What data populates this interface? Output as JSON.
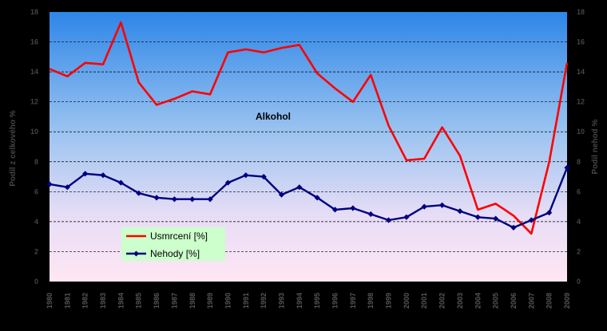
{
  "chart_data": {
    "type": "line",
    "x": [
      "1980",
      "1981",
      "1982",
      "1983",
      "1984",
      "1985",
      "1986",
      "1987",
      "1988",
      "1989",
      "1990",
      "1991",
      "1992",
      "1993",
      "1994",
      "1995",
      "1996",
      "1997",
      "1998",
      "1999",
      "2000",
      "2001",
      "2002",
      "2003",
      "2004",
      "2005",
      "2006",
      "2007",
      "2008",
      "2009"
    ],
    "series": [
      {
        "name": "Usmrcení [%]",
        "color": "#FF0000",
        "values": [
          14.2,
          13.7,
          14.6,
          14.5,
          17.3,
          13.3,
          11.8,
          12.2,
          12.7,
          12.5,
          15.3,
          15.5,
          15.3,
          15.6,
          15.8,
          13.9,
          12.9,
          12.0,
          13.8,
          10.4,
          8.1,
          8.2,
          10.3,
          8.4,
          4.8,
          5.2,
          4.4,
          3.2,
          8.0,
          14.6
        ]
      },
      {
        "name": "Nehody [%]",
        "color": "#000080",
        "values": [
          6.5,
          6.3,
          7.2,
          7.1,
          6.6,
          5.9,
          5.6,
          5.5,
          5.5,
          5.5,
          6.6,
          7.1,
          7.0,
          5.8,
          6.3,
          5.6,
          4.8,
          4.9,
          4.5,
          4.1,
          4.3,
          5.0,
          5.1,
          4.7,
          4.3,
          4.2,
          3.6,
          4.1,
          4.6,
          7.6
        ]
      }
    ],
    "ylim": [
      0,
      18
    ],
    "yticks": [
      "0",
      "2",
      "4",
      "6",
      "8",
      "10",
      "12",
      "14",
      "16",
      "18"
    ],
    "ylabel_left": "Podíl  z  celkového  %",
    "ylabel_right": "Podíl  nehod  %",
    "annotation": "Alkohol",
    "grid": true,
    "legend_position": "bottom-left"
  }
}
